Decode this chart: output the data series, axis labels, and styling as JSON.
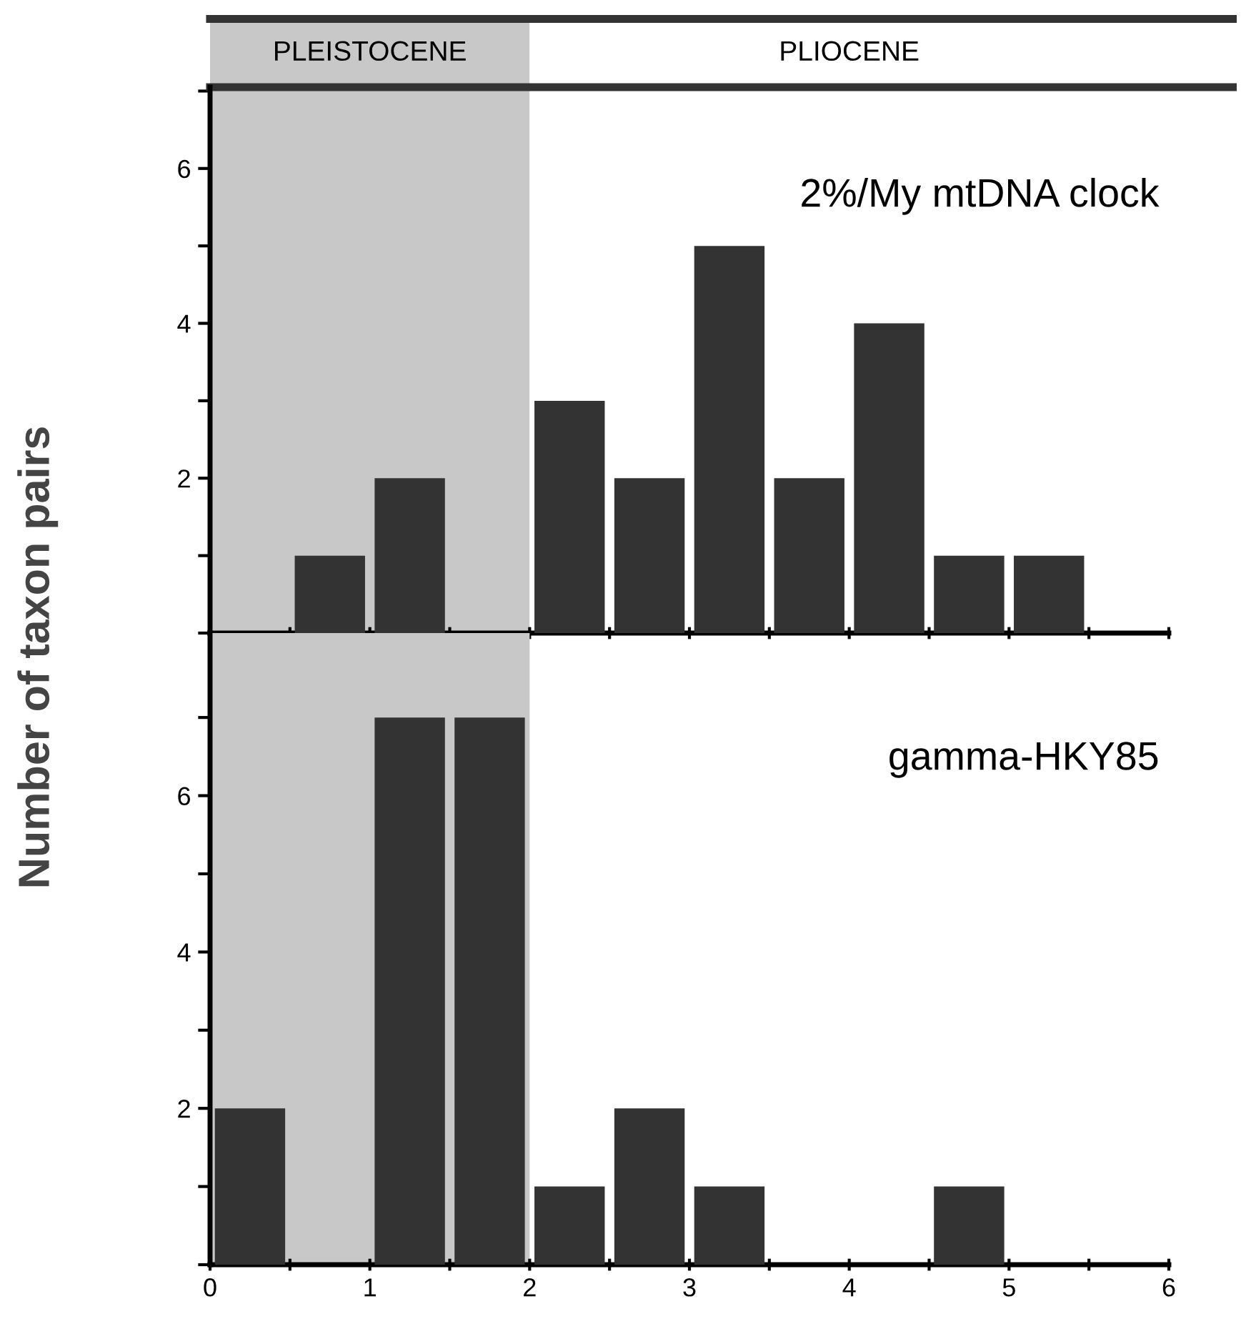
{
  "chart_data": [
    {
      "type": "histogram",
      "ylabel": "Number of taxon pairs",
      "bins": [
        0,
        0.5,
        1,
        1.5,
        2,
        2.5,
        3,
        3.5,
        4,
        4.5,
        5,
        5.5,
        6
      ],
      "values": [
        0,
        1,
        2,
        0,
        3,
        2,
        5,
        2,
        4,
        1,
        1,
        0
      ],
      "color": "#333333",
      "xlim": [
        0,
        6
      ],
      "ylim": [
        0,
        7.05
      ],
      "xticks": [
        {
          "value": 0,
          "label": null
        },
        {
          "value": 0.5,
          "label": null
        },
        {
          "value": 1,
          "label": null
        },
        {
          "value": 1.5,
          "label": null
        },
        {
          "value": 2,
          "label": null
        },
        {
          "value": 2.5,
          "label": null
        },
        {
          "value": 3,
          "label": null
        },
        {
          "value": 3.5,
          "label": null
        },
        {
          "value": 4,
          "label": null
        },
        {
          "value": 4.5,
          "label": null
        },
        {
          "value": 5,
          "label": null
        },
        {
          "value": 5.5,
          "label": null
        },
        {
          "value": 6,
          "label": null
        }
      ],
      "yticks": [
        {
          "value": 0,
          "label": null
        },
        {
          "value": 1,
          "label": null
        },
        2,
        {
          "value": 3,
          "label": null
        },
        4,
        {
          "value": 5,
          "label": null
        },
        6,
        {
          "value": 7,
          "label": null
        }
      ],
      "tick_labels": "y",
      "bands": [
        {
          "axis": "x",
          "from": 0,
          "to": 2,
          "label": "PLEISTOCENE",
          "color": "#c8c8c8"
        },
        {
          "axis": "x",
          "from": 2,
          "to": 6,
          "label": "PLIOCENE",
          "color": "#ffffff"
        }
      ],
      "annotations": [
        "2%/My mtDNA clock"
      ]
    },
    {
      "type": "histogram",
      "bins": [
        0,
        0.5,
        1,
        1.5,
        2,
        2.5,
        3,
        3.5,
        4,
        4.5,
        5,
        5.5,
        6
      ],
      "values": [
        2,
        0,
        7,
        7,
        1,
        2,
        1,
        0,
        0,
        1,
        0,
        0
      ],
      "color": "#333333",
      "xlim": [
        0,
        6
      ],
      "ylim": [
        0,
        8.08
      ],
      "xticks": [
        0,
        {
          "value": 0.5,
          "label": null
        },
        1,
        {
          "value": 1.5,
          "label": null
        },
        2,
        {
          "value": 2.5,
          "label": null
        },
        3,
        {
          "value": 3.5,
          "label": null
        },
        4,
        {
          "value": 4.5,
          "label": null
        },
        5,
        {
          "value": 5.5,
          "label": null
        },
        6
      ],
      "yticks": [
        {
          "value": 0,
          "label": null
        },
        {
          "value": 1,
          "label": null
        },
        2,
        {
          "value": 3,
          "label": null
        },
        4,
        {
          "value": 5,
          "label": null
        },
        6,
        {
          "value": 7,
          "label": null
        }
      ],
      "bands": [
        {
          "axis": "x",
          "from": 0,
          "to": 2,
          "color": "#c8c8c8"
        }
      ],
      "annotations": [
        "gamma-HKY85"
      ]
    }
  ]
}
